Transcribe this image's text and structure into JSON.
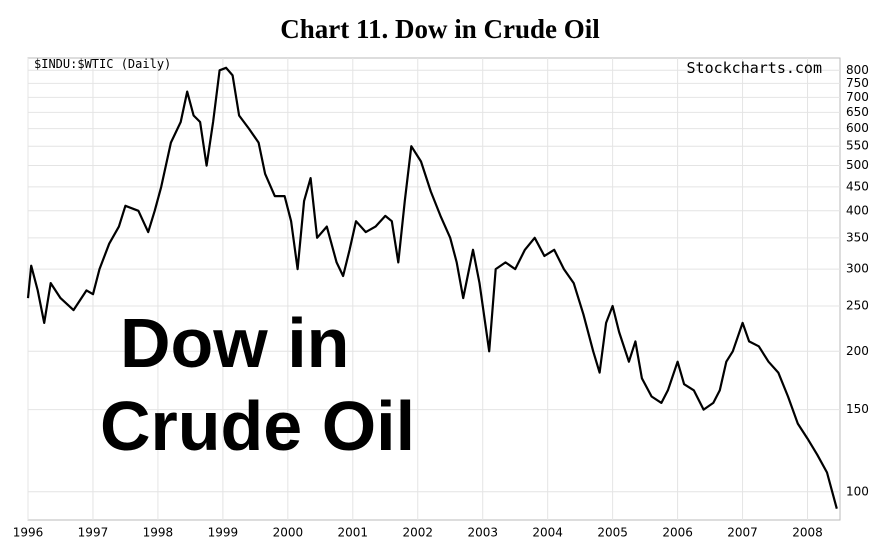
{
  "chart_data": {
    "type": "line",
    "title": "Chart 11. Dow in Crude Oil",
    "subtitle": "$INDU:$WTIC (Daily)",
    "source": "Stockcharts.com",
    "annotations": [
      "Dow in",
      "Crude Oil"
    ],
    "color": "#000000",
    "log_scale": true,
    "grid": true,
    "x": [
      1996.0,
      1996.05,
      1996.15,
      1996.25,
      1996.35,
      1996.5,
      1996.7,
      1996.9,
      1997.0,
      1997.1,
      1997.25,
      1997.4,
      1997.5,
      1997.7,
      1997.85,
      1997.95,
      1998.05,
      1998.2,
      1998.35,
      1998.45,
      1998.55,
      1998.65,
      1998.75,
      1998.85,
      1998.95,
      1999.05,
      1999.15,
      1999.25,
      1999.4,
      1999.55,
      1999.65,
      1999.8,
      1999.95,
      2000.05,
      2000.15,
      2000.25,
      2000.35,
      2000.45,
      2000.6,
      2000.75,
      2000.85,
      2000.95,
      2001.05,
      2001.2,
      2001.35,
      2001.5,
      2001.6,
      2001.7,
      2001.8,
      2001.9,
      2002.05,
      2002.2,
      2002.35,
      2002.5,
      2002.6,
      2002.7,
      2002.85,
      2002.95,
      2003.1,
      2003.2,
      2003.35,
      2003.5,
      2003.65,
      2003.8,
      2003.95,
      2004.1,
      2004.25,
      2004.4,
      2004.55,
      2004.7,
      2004.8,
      2004.9,
      2005.0,
      2005.1,
      2005.25,
      2005.35,
      2005.45,
      2005.6,
      2005.75,
      2005.85,
      2006.0,
      2006.1,
      2006.25,
      2006.4,
      2006.55,
      2006.65,
      2006.75,
      2006.85,
      2007.0,
      2007.1,
      2007.25,
      2007.4,
      2007.55,
      2007.7,
      2007.85,
      2008.0,
      2008.15,
      2008.3,
      2008.45
    ],
    "values": [
      260,
      305,
      270,
      230,
      280,
      260,
      245,
      270,
      265,
      300,
      340,
      370,
      410,
      400,
      360,
      400,
      450,
      560,
      620,
      720,
      640,
      620,
      500,
      620,
      800,
      810,
      780,
      640,
      600,
      560,
      480,
      430,
      430,
      380,
      300,
      420,
      470,
      350,
      370,
      310,
      290,
      330,
      380,
      360,
      370,
      390,
      380,
      310,
      420,
      550,
      510,
      440,
      390,
      350,
      310,
      260,
      330,
      280,
      200,
      300,
      310,
      300,
      330,
      350,
      320,
      330,
      300,
      280,
      240,
      200,
      180,
      230,
      250,
      220,
      190,
      210,
      175,
      160,
      155,
      165,
      190,
      170,
      165,
      150,
      155,
      165,
      190,
      200,
      230,
      210,
      205,
      190,
      180,
      160,
      140,
      130,
      120,
      110,
      92
    ],
    "xlim": [
      1996,
      2008.5
    ],
    "xticks": [
      1996,
      1997,
      1998,
      1999,
      2000,
      2001,
      2002,
      2003,
      2004,
      2005,
      2006,
      2007,
      2008
    ],
    "ylim": [
      87,
      850
    ],
    "yticks": [
      100,
      150,
      200,
      250,
      300,
      350,
      400,
      450,
      500,
      550,
      600,
      650,
      700,
      750,
      800
    ]
  }
}
